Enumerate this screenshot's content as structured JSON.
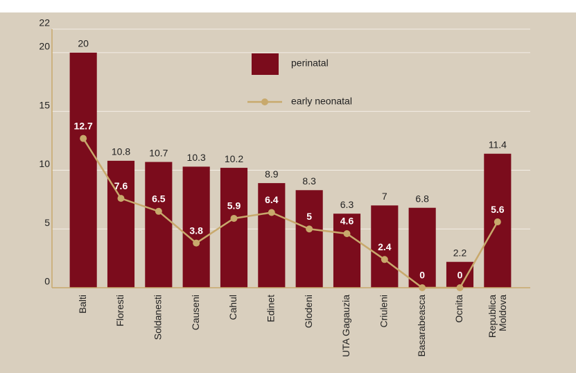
{
  "chart_data": {
    "type": "bar",
    "categories": [
      "Balti",
      "Floresti",
      "Soldanesti",
      "Causeni",
      "Cahul",
      "Edinet",
      "Glodeni",
      "UTA Gagauzia",
      "Criuleni",
      "Basarabeasca",
      "Ocnita",
      "Republica Moldova"
    ],
    "series": [
      {
        "name": "perinatal",
        "type": "bar",
        "color": "#7b0c1c",
        "values": [
          20,
          10.8,
          10.7,
          10.3,
          10.2,
          8.9,
          8.3,
          6.3,
          7,
          6.8,
          2.2,
          11.4
        ]
      },
      {
        "name": "early neonatal",
        "type": "line",
        "color": "#c8a96c",
        "values": [
          12.7,
          7.6,
          6.5,
          3.8,
          5.9,
          6.4,
          5,
          4.6,
          2.4,
          0,
          0,
          5.6
        ]
      }
    ],
    "ylim": [
      0,
      22
    ],
    "yticks": [
      0,
      5,
      10,
      15,
      20,
      22
    ],
    "grid": true
  }
}
